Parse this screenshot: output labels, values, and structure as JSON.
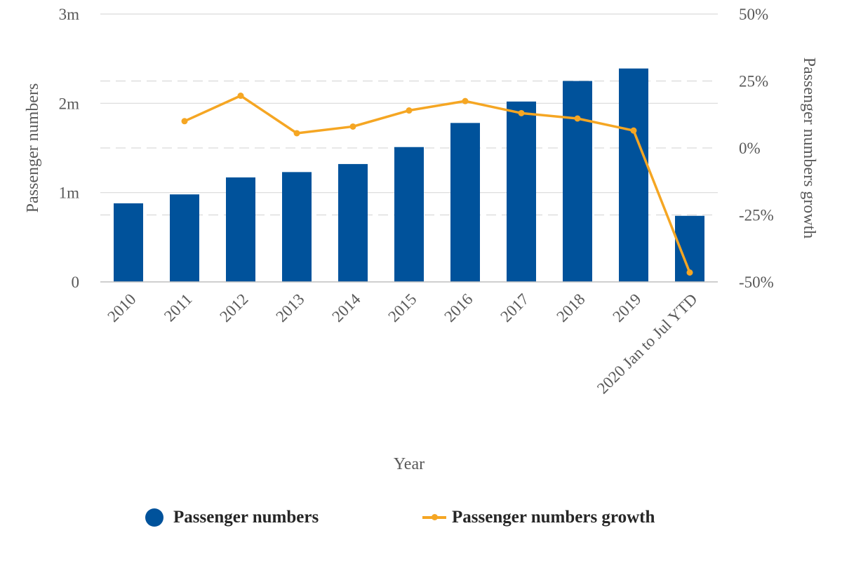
{
  "chart_data": {
    "type": "bar",
    "categories": [
      "2010",
      "2011",
      "2012",
      "2013",
      "2014",
      "2015",
      "2016",
      "2017",
      "2018",
      "2019",
      "2020 Jan to Jul YTD"
    ],
    "xlabel": "Year",
    "ylabel": "Passenger numbers",
    "y2label": "Passenger numbers growth",
    "ylim": [
      0,
      3000000
    ],
    "y2lim": [
      -50,
      50
    ],
    "y_ticks": [
      {
        "value": 0,
        "label": "0"
      },
      {
        "value": 1000000,
        "label": "1m"
      },
      {
        "value": 2000000,
        "label": "2m"
      },
      {
        "value": 3000000,
        "label": "3m"
      }
    ],
    "y2_ticks": [
      {
        "value": -50,
        "label": "-50%"
      },
      {
        "value": -25,
        "label": "-25%"
      },
      {
        "value": 0,
        "label": "0%"
      },
      {
        "value": 25,
        "label": "25%"
      },
      {
        "value": 50,
        "label": "50%"
      }
    ],
    "series": [
      {
        "name": "Passenger numbers",
        "type": "bar",
        "axis": "left",
        "color": "#00529B",
        "values": [
          880000,
          980000,
          1170000,
          1230000,
          1320000,
          1510000,
          1780000,
          2020000,
          2250000,
          2390000,
          740000
        ]
      },
      {
        "name": "Passenger numbers growth",
        "type": "line",
        "axis": "right",
        "color": "#F5A623",
        "values": [
          null,
          10,
          19.5,
          5.5,
          8,
          14,
          17.5,
          13,
          11,
          6.5,
          -46.5
        ]
      }
    ],
    "grid": true,
    "legend": "bottom"
  }
}
